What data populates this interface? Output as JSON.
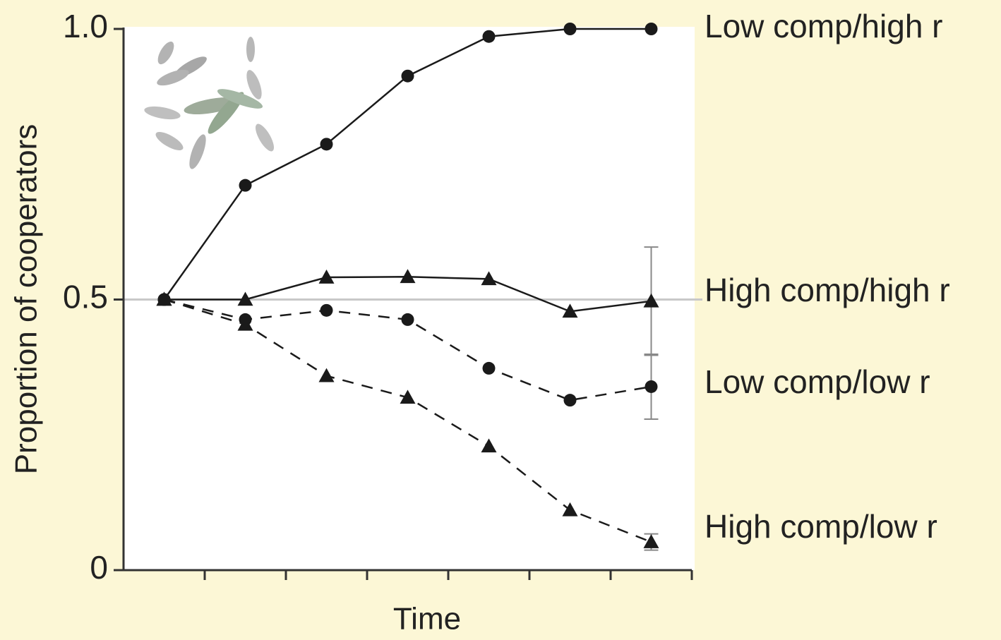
{
  "chart_data": {
    "type": "line",
    "xlabel": "Time",
    "ylabel": "Proportion of cooperators",
    "categories": [
      null,
      null,
      null,
      null,
      null,
      null,
      null
    ],
    "ylim": [
      0,
      1
    ],
    "yticks": [
      0,
      0.5,
      {
        "value": 1,
        "label": "1.0"
      }
    ],
    "reference_line": 0.5,
    "series": [
      {
        "name": "Low comp/high r",
        "color": "#1a1a1a",
        "marker": "circle",
        "linestyle": "solid",
        "values": [
          0.5,
          0.711,
          0.787,
          0.913,
          0.986,
          1.0,
          1.0
        ],
        "errors": [
          null,
          null,
          null,
          null,
          null,
          null,
          null
        ]
      },
      {
        "name": "High comp/high r",
        "color": "#1a1a1a",
        "marker": "triangle",
        "linestyle": "solid",
        "values": [
          0.5,
          0.5,
          0.541,
          0.542,
          0.538,
          0.478,
          0.497
        ],
        "errors": [
          null,
          null,
          null,
          null,
          null,
          null,
          0.1
        ]
      },
      {
        "name": "Low comp/low r",
        "color": "#1a1a1a",
        "marker": "circle",
        "linestyle": "dashed",
        "values": [
          0.5,
          0.463,
          0.48,
          0.463,
          0.373,
          0.314,
          0.339
        ],
        "errors": [
          null,
          null,
          null,
          null,
          null,
          null,
          0.06
        ]
      },
      {
        "name": "High comp/low r",
        "color": "#1a1a1a",
        "marker": "triangle",
        "linestyle": "dashed",
        "values": [
          0.5,
          0.454,
          0.359,
          0.319,
          0.229,
          0.111,
          0.052
        ],
        "errors": [
          null,
          null,
          null,
          null,
          null,
          null,
          0.015
        ]
      }
    ]
  }
}
